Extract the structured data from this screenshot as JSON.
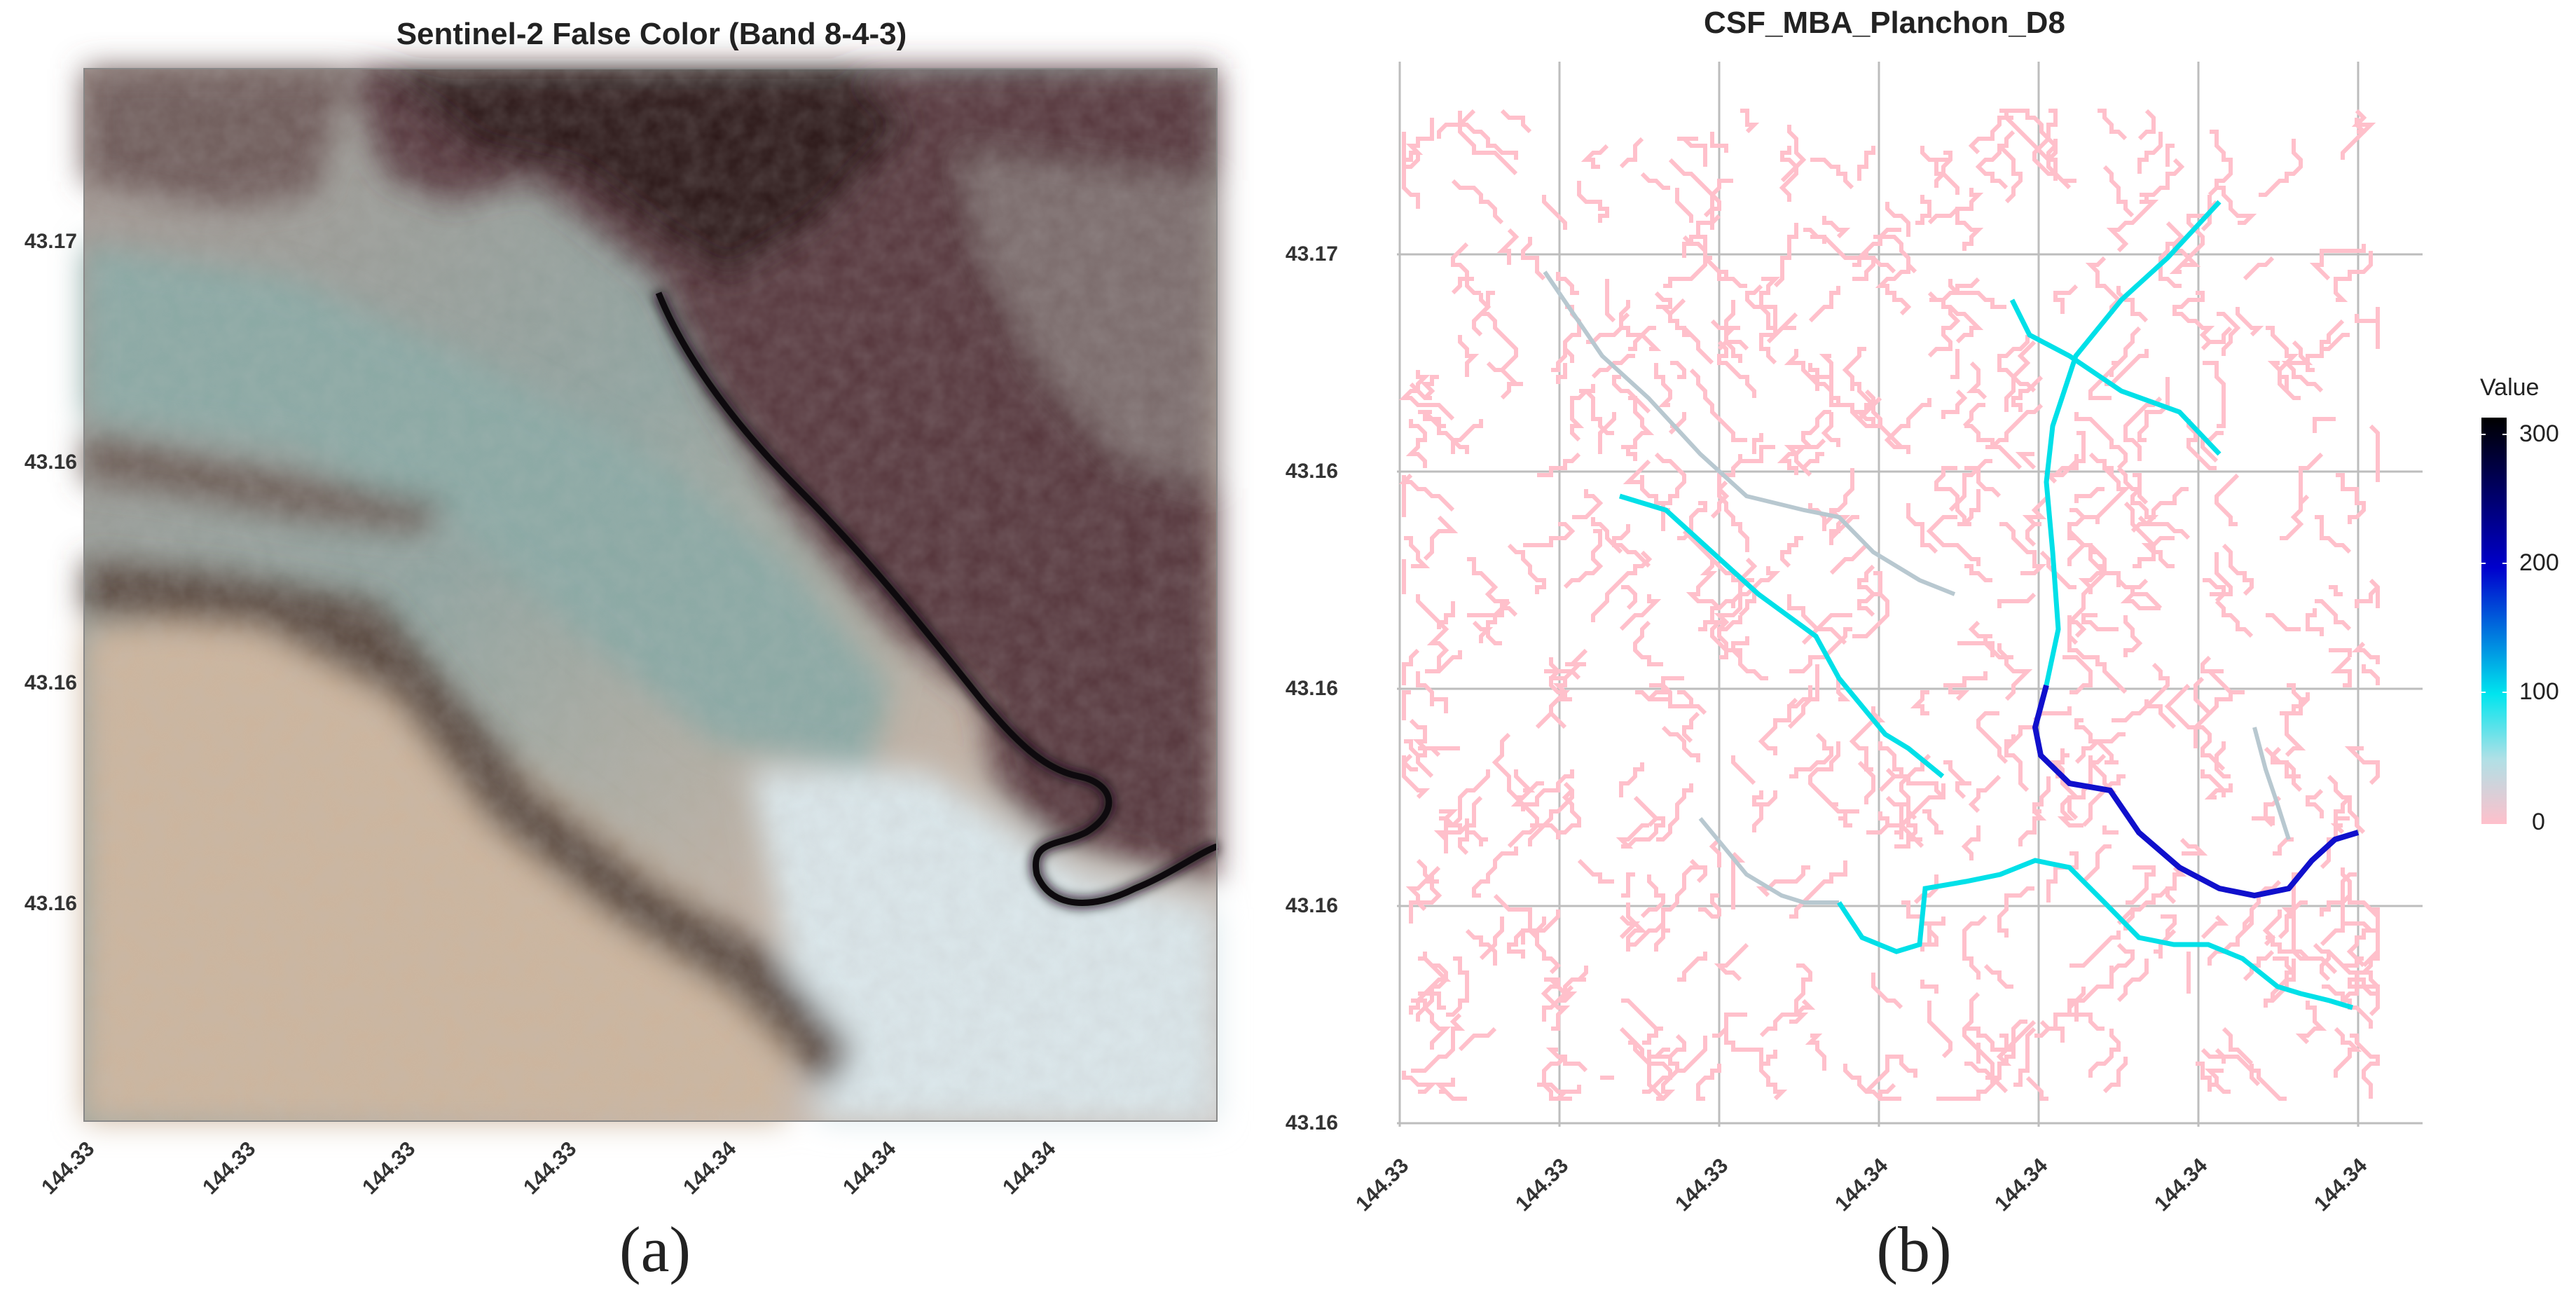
{
  "panel_a": {
    "title": "Sentinel-2 False Color (Band 8-4-3)",
    "caption": "(a)",
    "y_ticks": [
      "43.17",
      "43.16",
      "43.16",
      "43.16"
    ],
    "x_ticks": [
      "144.33",
      "144.33",
      "144.33",
      "144.33",
      "144.34",
      "144.34",
      "144.34"
    ],
    "colors": {
      "forest": "#4a2a2c",
      "river": "#1a1418",
      "meadow_light": "#c9b5a6",
      "cyan_tone": "#8fb0a8",
      "pale": "#dcd8d4"
    }
  },
  "panel_b": {
    "title": "CSF_MBA_Planchon_D8",
    "caption": "(b)",
    "y_ticks": [
      "43.17",
      "43.16",
      "43.16",
      "43.16",
      "43.16"
    ],
    "x_ticks": [
      "144.33",
      "144.33",
      "144.33",
      "144.34",
      "144.34",
      "144.34",
      "144.34"
    ],
    "legend": {
      "title": "Value",
      "labels": [
        "300",
        "200",
        "100",
        "0"
      ],
      "stops": [
        {
          "value": 0,
          "color": "#ffc0cb"
        },
        {
          "value": 50,
          "color": "#b0e0e6"
        },
        {
          "value": 100,
          "color": "#00e5ee"
        },
        {
          "value": 200,
          "color": "#0000cd"
        },
        {
          "value": 320,
          "color": "#000000"
        }
      ]
    },
    "network_colors": {
      "background_channels": "#ffc0cb",
      "low": "#b8c8d0",
      "mid": "#00e0e8",
      "high": "#1010cc"
    }
  }
}
